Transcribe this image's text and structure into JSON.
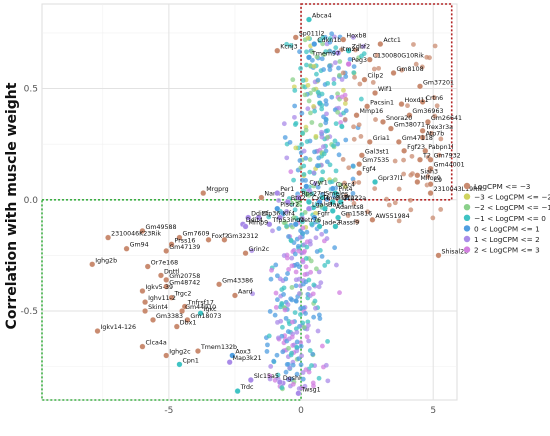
{
  "chart_data": {
    "type": "scatter",
    "title": "",
    "xlabel": "",
    "ylabel": "Correlation with muscle weight",
    "xlim": [
      -9.8,
      5.9
    ],
    "ylim": [
      -0.9,
      0.88
    ],
    "xticks": [
      -5,
      0,
      5
    ],
    "xtick_labels": [
      "-5",
      "0",
      "5"
    ],
    "yticks": [
      -0.5,
      0.0,
      0.5
    ],
    "ytick_labels": [
      "-0.5",
      "0.0",
      "0.5"
    ],
    "grid": true,
    "legend_position": "right",
    "series": [
      {
        "name": "LogCPM <= −3",
        "color": "#c98b70"
      },
      {
        "name": "−3 < LogCPM <= −2",
        "color": "#cfd35e"
      },
      {
        "name": "−2 < LogCPM <= −1",
        "color": "#8ad08a"
      },
      {
        "name": "−1 < LogCPM <= 0",
        "color": "#3fc3c3"
      },
      {
        "name": "0 < LogCPM <= 1",
        "color": "#4f9ee0"
      },
      {
        "name": "1 < LogCPM <= 2",
        "color": "#a98be8"
      },
      {
        "name": "2 < LogCPM <= 3",
        "color": "#d27fe0"
      }
    ],
    "highlight_regions": [
      {
        "color": "#b22222",
        "x": [
          0,
          5.7
        ],
        "y": [
          0.0,
          0.88
        ]
      },
      {
        "color": "#3cb043",
        "x": [
          -9.8,
          0
        ],
        "y": [
          -0.9,
          0.0
        ]
      }
    ],
    "labeled_points": [
      {
        "label": "Abca4",
        "x": 0.3,
        "y": 0.81,
        "series": 3
      },
      {
        "label": "Sp011l2",
        "x": -0.2,
        "y": 0.73,
        "series": 0
      },
      {
        "label": "Cdkn1b",
        "x": 0.5,
        "y": 0.7,
        "series": 4
      },
      {
        "label": "Hoxb8",
        "x": 1.6,
        "y": 0.72,
        "series": 0
      },
      {
        "label": "Actc1",
        "x": 3.0,
        "y": 0.7,
        "series": 0
      },
      {
        "label": "Zdbf2",
        "x": 1.8,
        "y": 0.67,
        "series": 3
      },
      {
        "label": "Kcnj3",
        "x": -0.9,
        "y": 0.67,
        "series": 0
      },
      {
        "label": "Itm2a",
        "x": 1.4,
        "y": 0.66,
        "series": 5
      },
      {
        "label": "Tmem97",
        "x": 0.3,
        "y": 0.64,
        "series": 4
      },
      {
        "label": "C130080G10Rik",
        "x": 2.6,
        "y": 0.63,
        "series": 0
      },
      {
        "label": "Peg3",
        "x": 1.8,
        "y": 0.61,
        "series": 6
      },
      {
        "label": "Gm8108",
        "x": 3.5,
        "y": 0.57,
        "series": 0
      },
      {
        "label": "Cilp2",
        "x": 2.4,
        "y": 0.54,
        "series": 0
      },
      {
        "label": "Gm37201",
        "x": 4.5,
        "y": 0.51,
        "series": 0
      },
      {
        "label": "Wif1",
        "x": 2.8,
        "y": 0.48,
        "series": 0
      },
      {
        "label": "Crtn6",
        "x": 4.6,
        "y": 0.44,
        "series": 0
      },
      {
        "label": "Pacsin1",
        "x": 2.5,
        "y": 0.42,
        "series": 0
      },
      {
        "label": "Hoxd11",
        "x": 3.8,
        "y": 0.43,
        "series": 0
      },
      {
        "label": "Mmp16",
        "x": 2.1,
        "y": 0.38,
        "series": 0
      },
      {
        "label": "Gm36963",
        "x": 4.1,
        "y": 0.38,
        "series": 0
      },
      {
        "label": "Snora20",
        "x": 3.1,
        "y": 0.35,
        "series": 0
      },
      {
        "label": "Gm26641",
        "x": 4.8,
        "y": 0.35,
        "series": 0
      },
      {
        "label": "Gm38071",
        "x": 3.4,
        "y": 0.32,
        "series": 0
      },
      {
        "label": "Trex3r3a",
        "x": 4.6,
        "y": 0.31,
        "series": 0
      },
      {
        "label": "Atp7b",
        "x": 4.6,
        "y": 0.28,
        "series": 0
      },
      {
        "label": "Gria1",
        "x": 2.6,
        "y": 0.26,
        "series": 0
      },
      {
        "label": "Gm47118",
        "x": 3.7,
        "y": 0.26,
        "series": 0
      },
      {
        "label": "Fgf23",
        "x": 3.9,
        "y": 0.22,
        "series": 0
      },
      {
        "label": "Pabpn1l",
        "x": 4.7,
        "y": 0.22,
        "series": 0
      },
      {
        "label": "Gal3st1",
        "x": 2.3,
        "y": 0.2,
        "series": 0
      },
      {
        "label": "T2",
        "x": 4.5,
        "y": 0.18,
        "series": 0
      },
      {
        "label": "Gm7932",
        "x": 4.9,
        "y": 0.18,
        "series": 0
      },
      {
        "label": "Gm7535",
        "x": 2.2,
        "y": 0.16,
        "series": 0
      },
      {
        "label": "Gm44001",
        "x": 4.9,
        "y": 0.14,
        "series": 0
      },
      {
        "label": "Fgf4",
        "x": 2.2,
        "y": 0.12,
        "series": 0
      },
      {
        "label": "Siah3",
        "x": 4.4,
        "y": 0.11,
        "series": 0
      },
      {
        "label": "Mlfos9",
        "x": 4.4,
        "y": 0.08,
        "series": 0
      },
      {
        "label": "Gpr37l1",
        "x": 2.8,
        "y": 0.08,
        "series": 3
      },
      {
        "label": "C9",
        "x": 4.9,
        "y": 0.07,
        "series": 0
      },
      {
        "label": "Cyyr1",
        "x": 0.2,
        "y": 0.06,
        "series": 4
      },
      {
        "label": "Cxxc4",
        "x": 1.2,
        "y": 0.05,
        "series": 4
      },
      {
        "label": "2310043L19Rik",
        "x": 4.9,
        "y": 0.03,
        "series": 0
      },
      {
        "label": "Pnt4",
        "x": 1.3,
        "y": 0.03,
        "series": 3
      },
      {
        "label": "Mrgprg",
        "x": -3.7,
        "y": 0.03,
        "series": 0
      },
      {
        "label": "Nanog",
        "x": -1.5,
        "y": 0.01,
        "series": 0
      },
      {
        "label": "Per1",
        "x": -0.9,
        "y": 0.03,
        "series": 5
      },
      {
        "label": "Rps27rt",
        "x": -0.1,
        "y": 0.01,
        "series": 5
      },
      {
        "label": "Smeles",
        "x": 0.8,
        "y": 0.01,
        "series": 3
      },
      {
        "label": "Btg2",
        "x": -0.5,
        "y": -0.01,
        "series": 5
      },
      {
        "label": "Cxcl4",
        "x": 0.3,
        "y": -0.01,
        "series": 3
      },
      {
        "label": "Tmed12",
        "x": 0.7,
        "y": -0.01,
        "series": 4
      },
      {
        "label": "Rnf122",
        "x": 1.2,
        "y": -0.01,
        "series": 3
      },
      {
        "label": "Zfp22a",
        "x": 1.5,
        "y": -0.01,
        "series": 3
      },
      {
        "label": "Plscr2",
        "x": -0.9,
        "y": -0.04,
        "series": 4
      },
      {
        "label": "Lgals3",
        "x": 0.3,
        "y": -0.04,
        "series": 5
      },
      {
        "label": "Hair1",
        "x": 0.9,
        "y": -0.04,
        "series": 3
      },
      {
        "label": "Adamts8",
        "x": 1.2,
        "y": -0.05,
        "series": 3
      },
      {
        "label": "Zfp36",
        "x": -1.6,
        "y": -0.08,
        "series": 5
      },
      {
        "label": "Ddit4",
        "x": -2.0,
        "y": -0.08,
        "series": 5
      },
      {
        "label": "Klf4",
        "x": -0.8,
        "y": -0.08,
        "series": 5
      },
      {
        "label": "Fgfr",
        "x": 0.5,
        "y": -0.08,
        "series": 4
      },
      {
        "label": "Gm15816",
        "x": 1.4,
        "y": -0.08,
        "series": 3
      },
      {
        "label": "AW551984",
        "x": 2.7,
        "y": -0.09,
        "series": 0
      },
      {
        "label": "Ddit4",
        "x": -2.2,
        "y": -0.11,
        "series": 5
      },
      {
        "label": "Tfp53inp1",
        "x": -1.2,
        "y": -0.11,
        "series": 5
      },
      {
        "label": "Mmp9",
        "x": -2.1,
        "y": -0.12,
        "series": 5
      },
      {
        "label": "Metr76",
        "x": -0.2,
        "y": -0.11,
        "series": 4
      },
      {
        "label": "Jade2",
        "x": 0.7,
        "y": -0.12,
        "series": 3
      },
      {
        "label": "Rassf9",
        "x": 1.3,
        "y": -0.12,
        "series": 3
      },
      {
        "label": "Gm49588",
        "x": -6.0,
        "y": -0.14,
        "series": 0
      },
      {
        "label": "Gm7609",
        "x": -4.6,
        "y": -0.17,
        "series": 0
      },
      {
        "label": "Foxf2",
        "x": -3.5,
        "y": -0.18,
        "series": 0
      },
      {
        "label": "Gm32312",
        "x": -2.9,
        "y": -0.18,
        "series": 0
      },
      {
        "label": "2310046K23Rik",
        "x": -7.3,
        "y": -0.17,
        "series": 0
      },
      {
        "label": "Prss16",
        "x": -4.9,
        "y": -0.2,
        "series": 0
      },
      {
        "label": "Gm94",
        "x": -6.6,
        "y": -0.22,
        "series": 0
      },
      {
        "label": "Gm47139",
        "x": -5.1,
        "y": -0.23,
        "series": 0
      },
      {
        "label": "Grin2c",
        "x": -2.1,
        "y": -0.24,
        "series": 0
      },
      {
        "label": "Ighg2b",
        "x": -7.9,
        "y": -0.29,
        "series": 0
      },
      {
        "label": "Or7e168",
        "x": -5.8,
        "y": -0.3,
        "series": 0
      },
      {
        "label": "Shisal2b",
        "x": 5.2,
        "y": -0.25,
        "series": 0
      },
      {
        "label": "Dnttl",
        "x": -5.3,
        "y": -0.34,
        "series": 0
      },
      {
        "label": "Gm20758",
        "x": -5.1,
        "y": -0.36,
        "series": 0
      },
      {
        "label": "Gm43386",
        "x": -3.1,
        "y": -0.38,
        "series": 0
      },
      {
        "label": "Gm48742",
        "x": -5.1,
        "y": -0.39,
        "series": 0
      },
      {
        "label": "Igkv5-39",
        "x": -6.0,
        "y": -0.41,
        "series": 0
      },
      {
        "label": "Aard",
        "x": -2.5,
        "y": -0.43,
        "series": 0
      },
      {
        "label": "Trgc2",
        "x": -4.9,
        "y": -0.44,
        "series": 0
      },
      {
        "label": "Ighv11-2",
        "x": -5.9,
        "y": -0.46,
        "series": 0
      },
      {
        "label": "Tnfrsf17",
        "x": -4.4,
        "y": -0.48,
        "series": 0
      },
      {
        "label": "Skint4",
        "x": -5.9,
        "y": -0.5,
        "series": 0
      },
      {
        "label": "Gm44910",
        "x": -4.5,
        "y": -0.5,
        "series": 0
      },
      {
        "label": "Igkc",
        "x": -3.8,
        "y": -0.51,
        "series": 3
      },
      {
        "label": "Gm3383",
        "x": -5.6,
        "y": -0.54,
        "series": 0
      },
      {
        "label": "Gm18073",
        "x": -4.3,
        "y": -0.54,
        "series": 0
      },
      {
        "label": "Dbx1",
        "x": -4.7,
        "y": -0.57,
        "series": 0
      },
      {
        "label": "Igkv14-126",
        "x": -7.7,
        "y": -0.59,
        "series": 0
      },
      {
        "label": "Clca4a",
        "x": -6.0,
        "y": -0.66,
        "series": 0
      },
      {
        "label": "Tmem132b",
        "x": -3.9,
        "y": -0.68,
        "series": 0
      },
      {
        "label": "Aox3",
        "x": -2.6,
        "y": -0.7,
        "series": 4
      },
      {
        "label": "Ighg2c",
        "x": -5.1,
        "y": -0.7,
        "series": 0
      },
      {
        "label": "Cpn1",
        "x": -4.6,
        "y": -0.74,
        "series": 3
      },
      {
        "label": "Map3k21",
        "x": -2.7,
        "y": -0.73,
        "series": 5
      },
      {
        "label": "Slc15a5",
        "x": -1.9,
        "y": -0.81,
        "series": 5
      },
      {
        "label": "Dgshl",
        "x": -0.8,
        "y": -0.82,
        "series": 5
      },
      {
        "label": "Trdc",
        "x": -2.4,
        "y": -0.86,
        "series": 3
      },
      {
        "label": "Twsg1",
        "x": -0.1,
        "y": -0.87,
        "series": 5
      }
    ]
  }
}
